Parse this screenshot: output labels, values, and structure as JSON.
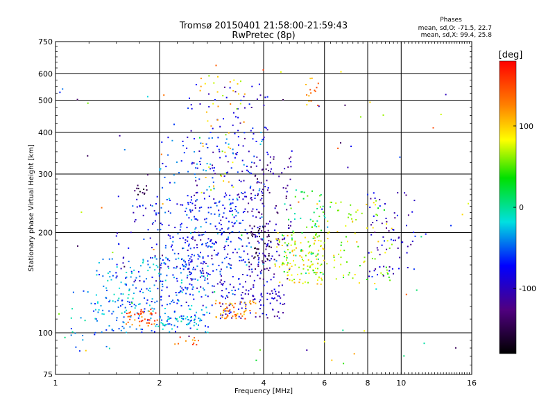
{
  "chart_data": {
    "type": "scatter",
    "title": "Tromsø 20150401 21:58:00-21:59:43",
    "subtitle": "RwPretec (8p)",
    "xlabel": "Frequency [MHz]",
    "ylabel": "Stationary phase Virtual Height [km]",
    "x_scale": "log",
    "y_scale": "log",
    "xlim": [
      1,
      16
    ],
    "ylim": [
      75,
      750
    ],
    "x_ticks": [
      1,
      2,
      4,
      6,
      8,
      10,
      16
    ],
    "x_tick_labels": [
      "1",
      "2",
      "4",
      "6",
      "8",
      "10",
      "16"
    ],
    "y_ticks": [
      75,
      100,
      200,
      300,
      400,
      500,
      600,
      750
    ],
    "y_tick_labels": [
      "75",
      "100",
      "200",
      "300",
      "400",
      "500",
      "600",
      "750"
    ],
    "grid": true,
    "stats": {
      "heading": "Phases",
      "line_o": "mean, sd,O: -71.5, 22.7",
      "line_x": "mean, sd,X:  99.4, 25.8"
    },
    "colorbar": {
      "label": "[deg]",
      "range": [
        -180,
        180
      ],
      "ticks": [
        100,
        0,
        -100
      ],
      "tick_labels": [
        "100",
        "0",
        "-100"
      ]
    },
    "clusters": [
      {
        "x": [
          1.3,
          2.8
        ],
        "y": [
          100,
          170
        ],
        "phase": -40,
        "n": 260
      },
      {
        "x": [
          1.5,
          3.6
        ],
        "y": [
          120,
          260
        ],
        "phase": -75,
        "n": 260
      },
      {
        "x": [
          2.4,
          4.2
        ],
        "y": [
          140,
          560
        ],
        "phase": -90,
        "n": 200
      },
      {
        "x": [
          2.6,
          3.6
        ],
        "y": [
          250,
          620
        ],
        "phase": 90,
        "n": 45
      },
      {
        "x": [
          2.0,
          4.0
        ],
        "y": [
          150,
          400
        ],
        "phase": -55,
        "n": 170
      },
      {
        "x": [
          3.0,
          4.6
        ],
        "y": [
          110,
          140
        ],
        "phase": -100,
        "n": 90
      },
      {
        "x": [
          2.9,
          3.8
        ],
        "y": [
          110,
          125
        ],
        "phase": 125,
        "n": 55
      },
      {
        "x": [
          1.6,
          2.0
        ],
        "y": [
          105,
          118
        ],
        "phase": 140,
        "n": 45
      },
      {
        "x": [
          2.0,
          2.6
        ],
        "y": [
          105,
          113
        ],
        "phase": -30,
        "n": 40
      },
      {
        "x": [
          3.6,
          4.8
        ],
        "y": [
          140,
          340
        ],
        "phase": -110,
        "n": 130
      },
      {
        "x": [
          3.6,
          4.2
        ],
        "y": [
          160,
          210
        ],
        "phase": -150,
        "n": 40
      },
      {
        "x": [
          4.3,
          6.0
        ],
        "y": [
          140,
          200
        ],
        "phase": 85,
        "n": 110
      },
      {
        "x": [
          4.5,
          6.0
        ],
        "y": [
          150,
          270
        ],
        "phase": 25,
        "n": 60
      },
      {
        "x": [
          5.5,
          9.5
        ],
        "y": [
          140,
          250
        ],
        "phase": 70,
        "n": 100
      },
      {
        "x": [
          8.0,
          11.0
        ],
        "y": [
          145,
          270
        ],
        "phase": -95,
        "n": 70
      },
      {
        "x": [
          1.1,
          1.6
        ],
        "y": [
          88,
          135
        ],
        "phase": -35,
        "n": 25
      },
      {
        "x": [
          2.2,
          2.6
        ],
        "y": [
          91,
          97
        ],
        "phase": 140,
        "n": 12
      },
      {
        "x": [
          1.65,
          1.85
        ],
        "y": [
          260,
          280
        ],
        "phase": -150,
        "n": 12
      },
      {
        "x": [
          5.3,
          5.8
        ],
        "y": [
          480,
          590
        ],
        "phase": 125,
        "n": 15
      },
      {
        "x": [
          1.0,
          16.0
        ],
        "y": [
          80,
          700
        ],
        "phase": 0,
        "n": 90
      }
    ]
  }
}
